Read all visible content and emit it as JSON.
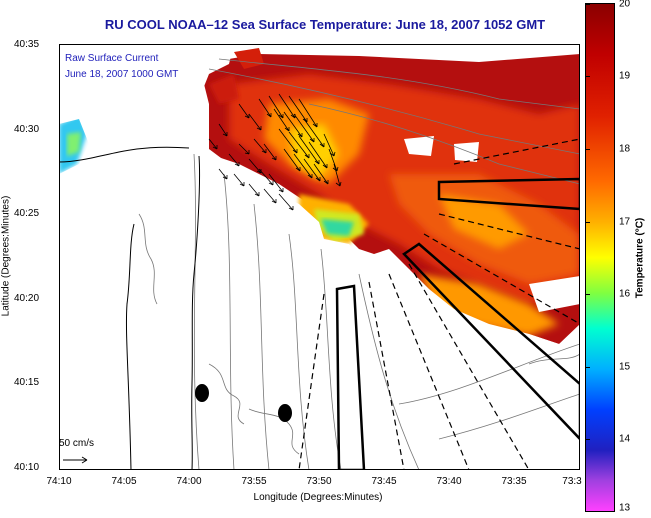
{
  "title": "RU COOL   NOAA–12  Sea Surface Temperature:  June 18, 2007 1052 GMT",
  "legend": {
    "line1": "Raw Surface Current",
    "line2": "June 18, 2007 1000 GMT"
  },
  "axes": {
    "xlabel": "Longitude (Degrees:Minutes)",
    "ylabel": "Latitude (Degrees:Minutes)",
    "xticks": [
      "74:10",
      "74:05",
      "74:00",
      "73:55",
      "73:50",
      "73:45",
      "73:40",
      "73:35",
      "73:3"
    ],
    "yticks": [
      "40:35",
      "40:30",
      "40:25",
      "40:20",
      "40:15",
      "40:10"
    ]
  },
  "colorbar": {
    "label": "Temperature (°C)",
    "ticks": [
      "20",
      "19",
      "18",
      "17",
      "16",
      "15",
      "14",
      "13"
    ],
    "range": [
      13,
      20
    ]
  },
  "vector_scale_label": "50 cm/s",
  "colors": {
    "title": "#1a1a9e",
    "legend": "#2222bb",
    "warm": "#c01010",
    "land": "#ffffff"
  }
}
